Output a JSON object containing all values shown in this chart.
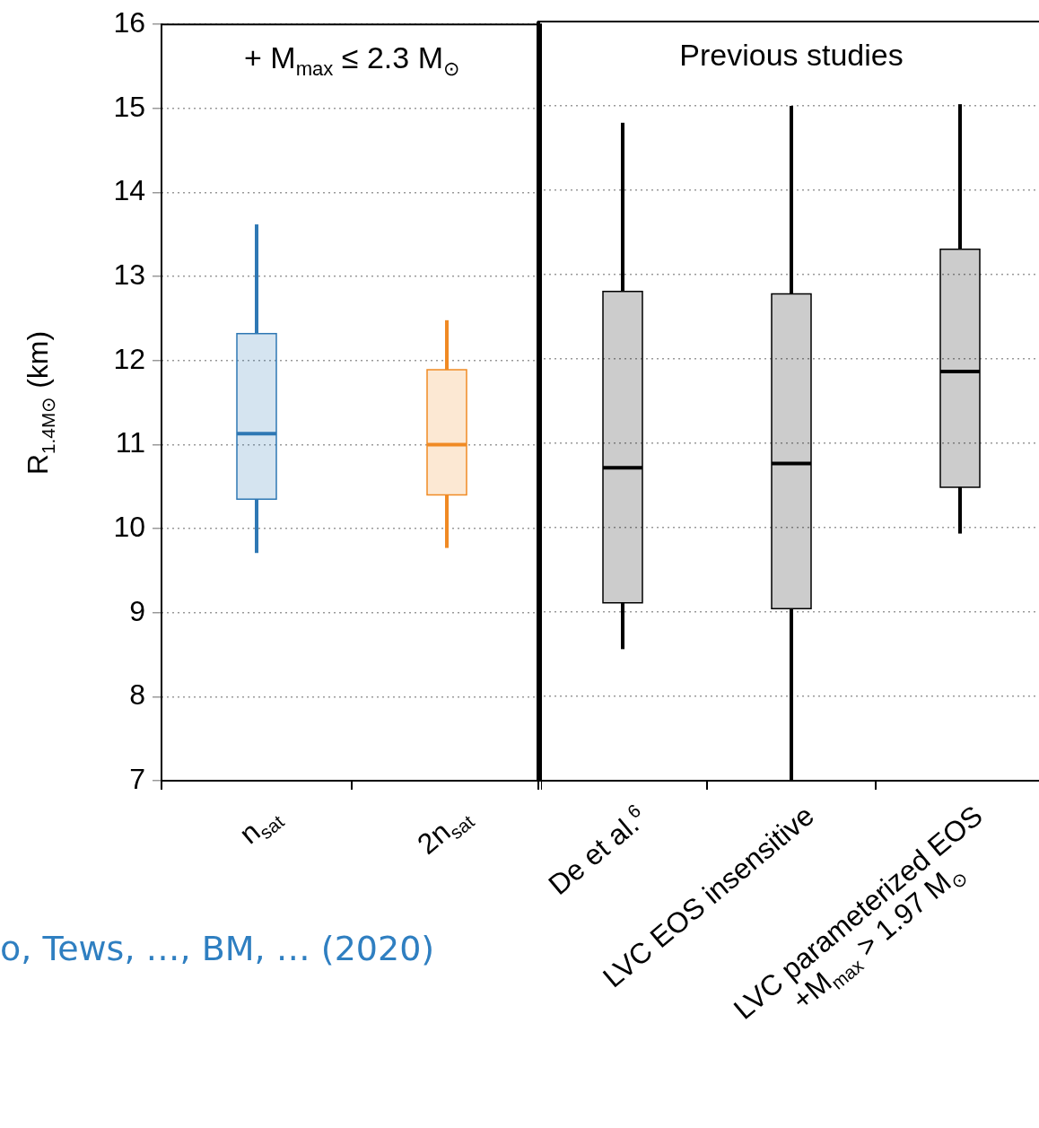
{
  "chart_data": [
    {
      "type": "box",
      "title": "+ M$_{max}$ ≤ 2.3 M$_{⊙}$",
      "ylabel": "R$_{1.4M⊙}$ (km)",
      "categories": [
        "n$_{sat}$",
        "2n$_{sat}$"
      ],
      "colors": [
        "#2f78b4",
        "#f08a24"
      ],
      "boxes": [
        {
          "low": 9.71,
          "q1": 10.35,
          "median": 11.13,
          "q3": 12.32,
          "high": 13.62
        },
        {
          "low": 9.77,
          "q1": 10.4,
          "median": 11.0,
          "q3": 11.89,
          "high": 12.48
        }
      ],
      "ylim": [
        7,
        16
      ],
      "yticks": [
        7,
        8,
        9,
        10,
        11,
        12,
        13,
        14,
        15,
        16
      ],
      "grid": "y",
      "annotations": [
        "o, Tews, …, BM, … (2020)"
      ]
    },
    {
      "type": "box",
      "title": "Previous studies",
      "categories": [
        "De et al.$^{6}$",
        "LVC EOS insensitive",
        "LVC parameterized EOS\n+M$_{max}$ > 1.97 M$_{⊙}$"
      ],
      "colors": [
        "#000000",
        "#000000",
        "#000000"
      ],
      "boxes": [
        {
          "low": 8.56,
          "q1": 9.11,
          "median": 10.71,
          "q3": 12.8,
          "high": 14.8
        },
        {
          "low": 7.0,
          "q1": 9.04,
          "median": 10.76,
          "q3": 12.77,
          "high": 15.0
        },
        {
          "low": 9.93,
          "q1": 10.48,
          "median": 11.85,
          "q3": 13.3,
          "high": 15.02
        }
      ],
      "ylim": [
        7,
        16
      ],
      "yticks": [
        7,
        8,
        9,
        10,
        11,
        12,
        13,
        14,
        15,
        16
      ],
      "grid": "y",
      "tick_labels": "x"
    }
  ]
}
